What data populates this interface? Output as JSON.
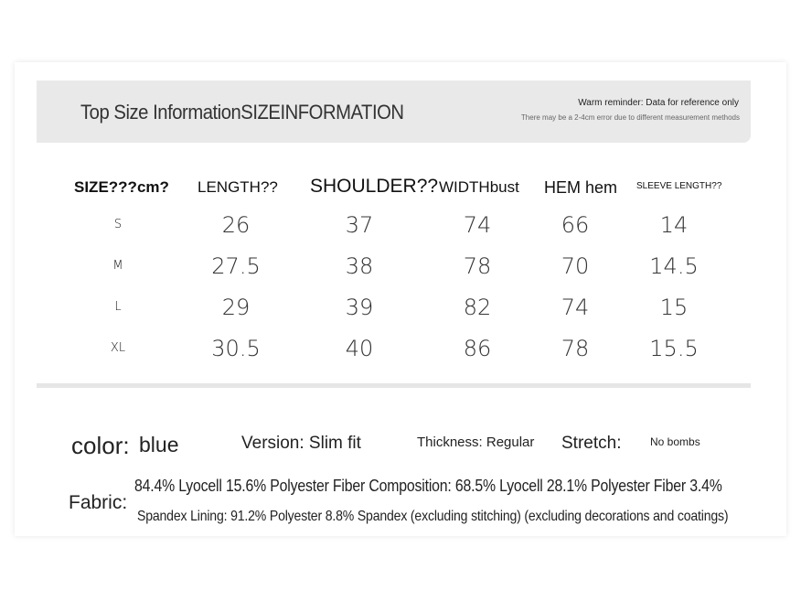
{
  "header": {
    "title": "Top Size InformationSIZEINFORMATION",
    "reminder": "Warm reminder: Data for reference only",
    "error_note": "There may be a 2-4cm error due to different measurement methods"
  },
  "table": {
    "headers": [
      "SIZE???cm?",
      "LENGTH??",
      "SHOULDER??",
      "WIDTHbust",
      "HEM hem",
      "SLEEVE LENGTH??"
    ],
    "rows": [
      [
        "S",
        "26",
        "37",
        "74",
        "66",
        "14"
      ],
      [
        "M",
        "27.5",
        "38",
        "78",
        "70",
        "14.5"
      ],
      [
        "L",
        "29",
        "39",
        "82",
        "74",
        "15"
      ],
      [
        "XL",
        "30.5",
        "40",
        "86",
        "78",
        "15.5"
      ]
    ]
  },
  "specs": {
    "color_label": "color:",
    "color_value": "blue",
    "version": "Version: Slim fit",
    "thickness": "Thickness: Regular",
    "stretch_label": "Stretch:",
    "stretch_value": "No bombs",
    "fabric_label": "Fabric:",
    "fabric_line1": "84.4% Lyocell 15.6% Polyester Fiber Composition: 68.5% Lyocell 28.1% Polyester Fiber 3.4%",
    "fabric_line2": "Spandex Lining: 91.2% Polyester 8.8% Spandex (excluding stitching) (excluding decorations and coatings)"
  }
}
